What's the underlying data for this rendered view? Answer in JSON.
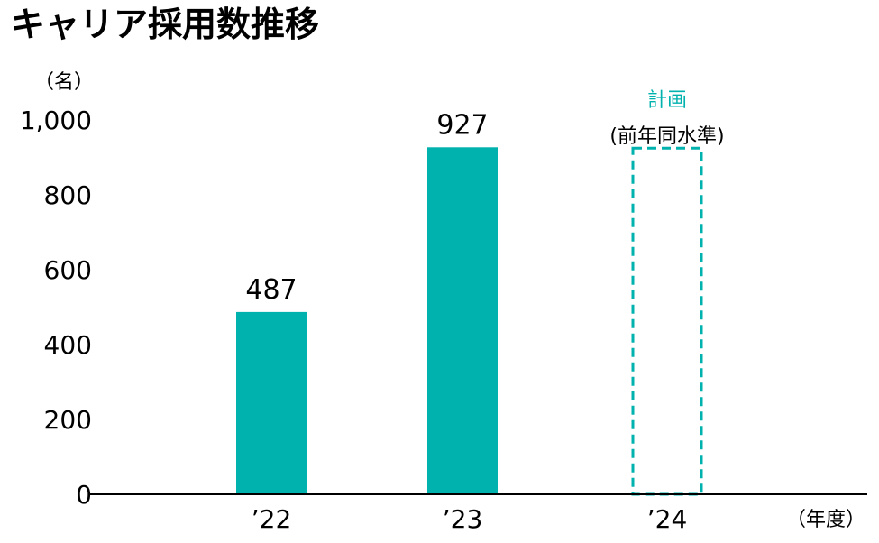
{
  "title": "キャリア採用数推移",
  "colors": {
    "bar": "#00b2ae",
    "text": "#000000",
    "axis": "#000000"
  },
  "chart_data": {
    "type": "bar",
    "title": "キャリア採用数推移",
    "y_unit": "（名）",
    "x_unit": "（年度）",
    "categories": [
      "’22",
      "’23",
      "’24"
    ],
    "values": [
      487,
      927,
      927
    ],
    "value_labels": [
      "487",
      "927",
      ""
    ],
    "planned": [
      false,
      false,
      true
    ],
    "yticks": [
      "0",
      "200",
      "400",
      "600",
      "800",
      "1,000"
    ],
    "ylim": [
      0,
      1000
    ],
    "grid": false,
    "legend": "none",
    "annotation": {
      "line1": "計画",
      "line2": "(前年同水準)"
    }
  }
}
